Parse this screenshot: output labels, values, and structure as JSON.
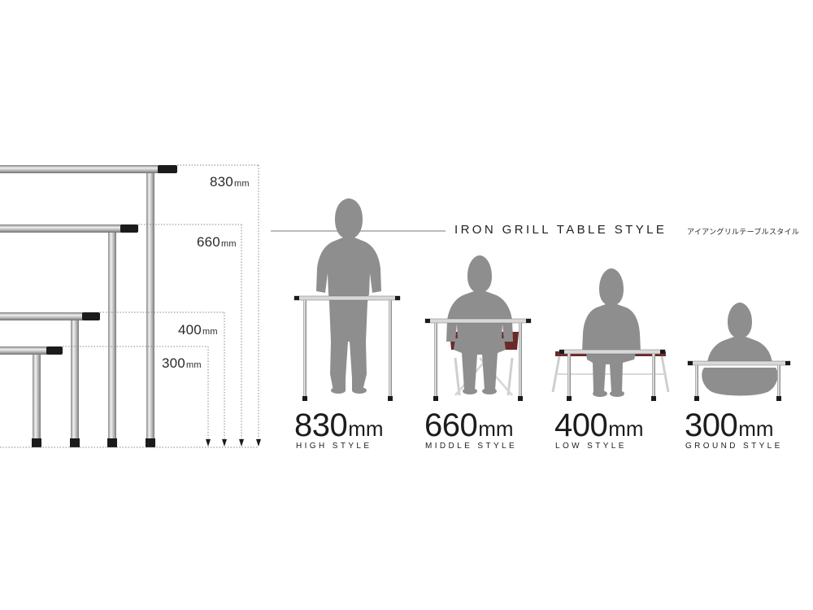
{
  "diagram": {
    "title": "IRON GRILL TABLE STYLE",
    "title_jp": "アイアングリルテーブルスタイル",
    "unit": "mm",
    "heights": [
      {
        "value": "830",
        "style": "HIGH STYLE"
      },
      {
        "value": "660",
        "style": "MIDDLE STYLE"
      },
      {
        "value": "400",
        "style": "LOW STYLE"
      },
      {
        "value": "300",
        "style": "GROUND STYLE"
      }
    ]
  },
  "colors": {
    "silhouette": "#8e8e8e",
    "steel_light": "#e4e4e4",
    "steel_dark": "#9c9c9c",
    "foot": "#1b1b1b",
    "chair_fabric": "#6b2a2a",
    "guide_line": "#888888"
  }
}
